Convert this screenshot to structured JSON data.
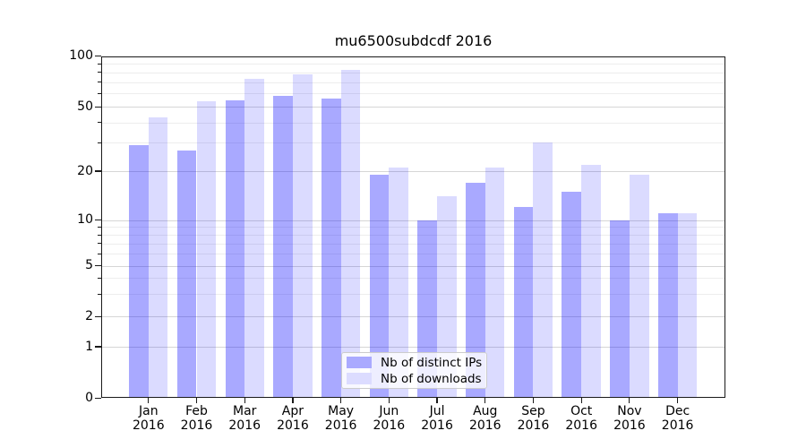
{
  "chart_data": {
    "type": "bar",
    "title": "mu6500subdcdf 2016",
    "categories": [
      "Jan 2016",
      "Feb 2016",
      "Mar 2016",
      "Apr 2016",
      "May 2016",
      "Jun 2016",
      "Jul 2016",
      "Aug 2016",
      "Sep 2016",
      "Oct 2016",
      "Nov 2016",
      "Dec 2016"
    ],
    "series": [
      {
        "name": "Nb of distinct IPs",
        "fill": "rgba(0,0,255,0.337)",
        "swatch": "#aaaaff",
        "values": [
          29,
          27,
          55,
          58,
          56,
          19,
          10,
          17,
          12,
          15,
          10,
          11
        ]
      },
      {
        "name": "Nb of downloads",
        "fill": "rgba(0,0,255,0.141)",
        "swatch": "#dcdcff",
        "values": [
          43,
          54,
          73,
          78,
          83,
          21,
          14,
          21,
          30,
          22,
          19,
          11
        ]
      }
    ],
    "yscale": "symlog",
    "ylim": [
      0,
      100
    ],
    "yticks": [
      100,
      50,
      20,
      10,
      5,
      2,
      1,
      0
    ],
    "minor_yticks": [
      90,
      80,
      70,
      60,
      40,
      30,
      9,
      8,
      7,
      6,
      4,
      3
    ],
    "grid": true,
    "legend_position": "lower center",
    "colors": {
      "bar_dark": "#aaaaff",
      "bar_light": "#dcdcff",
      "grid_major": "#d6d6d6",
      "grid_minor": "#ededed",
      "spine": "#1a1a1a",
      "text": "#000000"
    }
  }
}
